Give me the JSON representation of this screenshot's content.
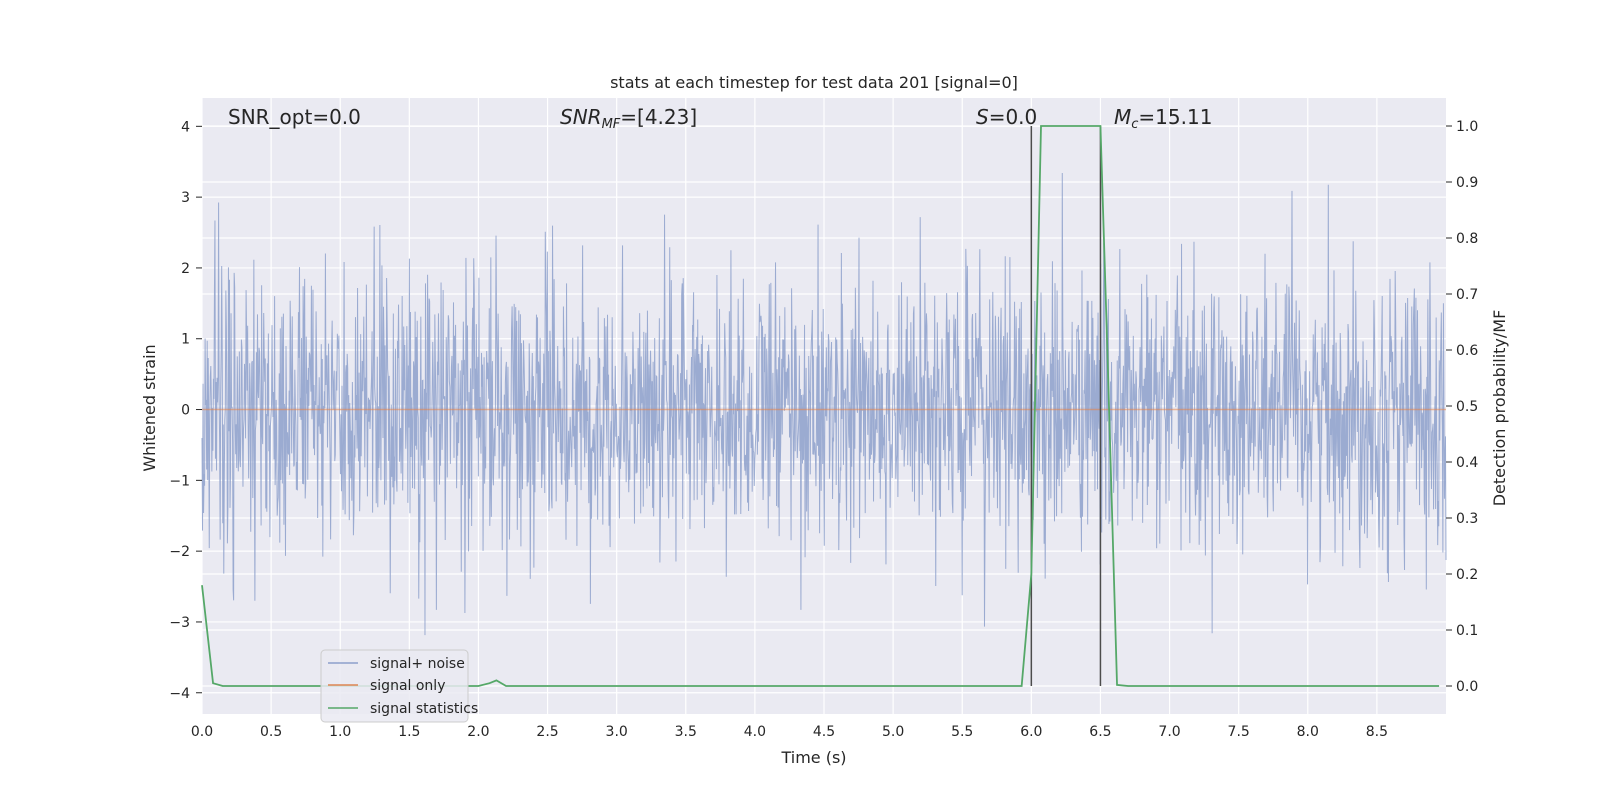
{
  "chart_data": {
    "type": "line",
    "title": "stats at each timestep for test data 201 [signal=0]",
    "xlabel": "Time (s)",
    "ylabel_left": "Whitened strain",
    "ylabel_right": "Detection probability/MF",
    "xlim": [
      0.0,
      9.0
    ],
    "ylim_left": [
      -4.3,
      4.4
    ],
    "ylim_right": [
      -0.05,
      1.05
    ],
    "xticks": [
      "0.0",
      "0.5",
      "1.0",
      "1.5",
      "2.0",
      "2.5",
      "3.0",
      "3.5",
      "4.0",
      "4.5",
      "5.0",
      "5.5",
      "6.0",
      "6.5",
      "7.0",
      "7.5",
      "8.0",
      "8.5"
    ],
    "yticks_left": [
      "4",
      "3",
      "2",
      "1",
      "0",
      "−1",
      "−2",
      "−3",
      "−4"
    ],
    "yticks_right": [
      "1.0",
      "0.9",
      "0.8",
      "0.7",
      "0.6",
      "0.5",
      "0.4",
      "0.3",
      "0.2",
      "0.1",
      "0.0"
    ],
    "grid": true,
    "legend_position": "lower-left",
    "annotations": {
      "snr_opt": "SNR_opt=0.0",
      "snr_mf_prefix": "SNR",
      "snr_mf_sub": "MF",
      "snr_mf_value": "=[4.23]",
      "s_prefix": "S",
      "s_value": "=0.0",
      "mc_prefix": "M",
      "mc_sub": "c",
      "mc_value": "=15.11"
    },
    "vertical_lines_x": [
      6.0,
      6.5
    ],
    "series": [
      {
        "name": "signal+ noise",
        "axis": "left",
        "color": "#8da0cb",
        "style": "dense noise trace, amplitude ~N(0,1)",
        "extremes": {
          "max": 3.7,
          "min": -3.9
        }
      },
      {
        "name": "signal only",
        "axis": "left",
        "color": "#dd8452",
        "x": [
          0.0,
          9.0
        ],
        "y": [
          0.0,
          0.0
        ]
      },
      {
        "name": "signal statistics",
        "axis": "right",
        "color": "#55a868",
        "x": [
          0.0,
          0.08,
          0.15,
          1.0,
          2.0,
          2.08,
          2.13,
          2.2,
          3.0,
          4.0,
          5.0,
          5.93,
          6.0,
          6.07,
          6.5,
          6.55,
          6.62,
          6.7,
          7.0,
          8.0,
          8.95
        ],
        "y": [
          0.18,
          0.005,
          0.0,
          0.0,
          0.0,
          0.005,
          0.01,
          0.0,
          0.0,
          0.0,
          0.0,
          0.0,
          0.2,
          1.0,
          1.0,
          0.6,
          0.002,
          0.0,
          0.0,
          0.0,
          0.0
        ]
      }
    ],
    "colors": {
      "background": "#eaeaf2",
      "grid": "#ffffff",
      "noise": "#8da0cb",
      "signal": "#dd8452",
      "stats": "#55a868",
      "vline": "#4c4c4c"
    }
  }
}
